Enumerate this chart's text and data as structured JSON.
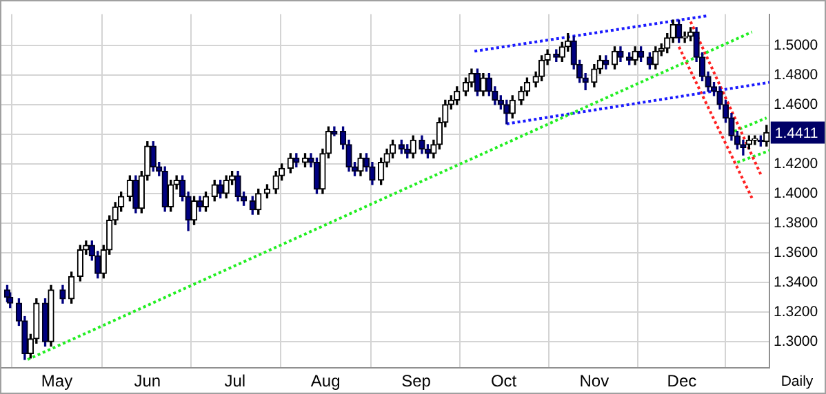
{
  "chart_data": {
    "type": "candlestick",
    "x": [
      "--04-14",
      "--04-15",
      "--04-18",
      "--04-20",
      "--04-22",
      "--04-24",
      "--04-27",
      "--04-29",
      "--05-03",
      "--05-06",
      "--05-09",
      "--05-11",
      "--05-13",
      "--05-15",
      "--05-17",
      "--05-19",
      "--05-21",
      "--05-23",
      "--05-26",
      "--05-28",
      "--05-30",
      "--06-01",
      "--06-03",
      "--06-05",
      "--06-07",
      "--06-09",
      "--06-11",
      "--06-13",
      "--06-15",
      "--06-17",
      "--06-19",
      "--06-21",
      "--06-24",
      "--06-26",
      "--06-28",
      "--06-30",
      "--07-02",
      "--07-04",
      "--07-07",
      "--07-09",
      "--07-12",
      "--07-15",
      "--07-17",
      "--07-20",
      "--07-22",
      "--07-25",
      "--07-27",
      "--07-29",
      "--07-31",
      "--08-02",
      "--08-04",
      "--08-07",
      "--08-09",
      "--08-11",
      "--08-13",
      "--08-15",
      "--08-17",
      "--08-20",
      "--08-22",
      "--08-24",
      "--08-27",
      "--08-29",
      "--08-31",
      "--09-03",
      "--09-05",
      "--09-07",
      "--09-09",
      "--09-11",
      "--09-13",
      "--09-15",
      "--09-18",
      "--09-20",
      "--09-22",
      "--09-24",
      "--09-26",
      "--09-28",
      "--09-30",
      "--10-02",
      "--10-04",
      "--10-07",
      "--10-09",
      "--10-12",
      "--10-14",
      "--10-16",
      "--10-19",
      "--10-21",
      "--10-23",
      "--10-25",
      "--10-27",
      "--10-29",
      "--11-01",
      "--11-03",
      "--11-05",
      "--11-08",
      "--11-10",
      "--11-13",
      "--11-15",
      "--11-17",
      "--11-20",
      "--11-22",
      "--11-24",
      "--11-26",
      "--11-28",
      "--11-30",
      "--12-02",
      "--12-04",
      "--12-06",
      "--12-08",
      "--12-10",
      "--12-12",
      "--12-14",
      "--12-16",
      "--12-18",
      "--12-20",
      "--12-22",
      "--12-24",
      "--12-26",
      "--12-28",
      "--12-30"
    ],
    "ohlc": [
      [
        1.335,
        1.338,
        1.327,
        1.33
      ],
      [
        1.33,
        1.333,
        1.323,
        1.326
      ],
      [
        1.326,
        1.329,
        1.311,
        1.314
      ],
      [
        1.314,
        1.317,
        1.288,
        1.292
      ],
      [
        1.292,
        1.305,
        1.289,
        1.302
      ],
      [
        1.302,
        1.329,
        1.299,
        1.326
      ],
      [
        1.326,
        1.329,
        1.297,
        1.3
      ],
      [
        1.3,
        1.338,
        1.297,
        1.335
      ],
      [
        1.335,
        1.338,
        1.326,
        1.329
      ],
      [
        1.329,
        1.347,
        1.326,
        1.344
      ],
      [
        1.344,
        1.365,
        1.341,
        1.362
      ],
      [
        1.362,
        1.368,
        1.359,
        1.365
      ],
      [
        1.365,
        1.368,
        1.355,
        1.358
      ],
      [
        1.358,
        1.361,
        1.343,
        1.346
      ],
      [
        1.346,
        1.365,
        1.343,
        1.362
      ],
      [
        1.362,
        1.385,
        1.359,
        1.382
      ],
      [
        1.382,
        1.394,
        1.379,
        1.391
      ],
      [
        1.391,
        1.401,
        1.388,
        1.398
      ],
      [
        1.398,
        1.412,
        1.395,
        1.409
      ],
      [
        1.409,
        1.412,
        1.387,
        1.39
      ],
      [
        1.39,
        1.415,
        1.387,
        1.412
      ],
      [
        1.412,
        1.435,
        1.409,
        1.432
      ],
      [
        1.432,
        1.435,
        1.415,
        1.418
      ],
      [
        1.418,
        1.421,
        1.412,
        1.415
      ],
      [
        1.415,
        1.418,
        1.388,
        1.391
      ],
      [
        1.391,
        1.409,
        1.388,
        1.406
      ],
      [
        1.406,
        1.412,
        1.403,
        1.409
      ],
      [
        1.409,
        1.412,
        1.395,
        1.398
      ],
      [
        1.398,
        1.401,
        1.375,
        1.382
      ],
      [
        1.382,
        1.398,
        1.379,
        1.395
      ],
      [
        1.395,
        1.398,
        1.388,
        1.391
      ],
      [
        1.391,
        1.401,
        1.388,
        1.398
      ],
      [
        1.398,
        1.409,
        1.395,
        1.406
      ],
      [
        1.406,
        1.409,
        1.397,
        1.4
      ],
      [
        1.4,
        1.412,
        1.397,
        1.409
      ],
      [
        1.409,
        1.415,
        1.406,
        1.412
      ],
      [
        1.412,
        1.415,
        1.395,
        1.398
      ],
      [
        1.398,
        1.401,
        1.392,
        1.395
      ],
      [
        1.395,
        1.398,
        1.386,
        1.389
      ],
      [
        1.389,
        1.403,
        1.386,
        1.4
      ],
      [
        1.4,
        1.406,
        1.397,
        1.403
      ],
      [
        1.403,
        1.415,
        1.4,
        1.412
      ],
      [
        1.412,
        1.42,
        1.409,
        1.417
      ],
      [
        1.417,
        1.427,
        1.414,
        1.424
      ],
      [
        1.424,
        1.427,
        1.418,
        1.421
      ],
      [
        1.421,
        1.427,
        1.418,
        1.424
      ],
      [
        1.424,
        1.427,
        1.418,
        1.421
      ],
      [
        1.421,
        1.424,
        1.4,
        1.403
      ],
      [
        1.403,
        1.43,
        1.4,
        1.427
      ],
      [
        1.427,
        1.445,
        1.424,
        1.442
      ],
      [
        1.442,
        1.445,
        1.439,
        1.44
      ],
      [
        1.442,
        1.445,
        1.43,
        1.433
      ],
      [
        1.433,
        1.436,
        1.415,
        1.418
      ],
      [
        1.418,
        1.421,
        1.412,
        1.415
      ],
      [
        1.415,
        1.427,
        1.412,
        1.424
      ],
      [
        1.424,
        1.427,
        1.415,
        1.418
      ],
      [
        1.418,
        1.421,
        1.406,
        1.409
      ],
      [
        1.409,
        1.424,
        1.406,
        1.421
      ],
      [
        1.421,
        1.43,
        1.418,
        1.427
      ],
      [
        1.427,
        1.436,
        1.424,
        1.433
      ],
      [
        1.433,
        1.436,
        1.427,
        1.43
      ],
      [
        1.43,
        1.433,
        1.424,
        1.427
      ],
      [
        1.427,
        1.439,
        1.424,
        1.436
      ],
      [
        1.436,
        1.439,
        1.427,
        1.43
      ],
      [
        1.43,
        1.433,
        1.424,
        1.427
      ],
      [
        1.427,
        1.436,
        1.424,
        1.433
      ],
      [
        1.433,
        1.451,
        1.43,
        1.448
      ],
      [
        1.448,
        1.463,
        1.445,
        1.46
      ],
      [
        1.46,
        1.466,
        1.457,
        1.463
      ],
      [
        1.463,
        1.472,
        1.46,
        1.469
      ],
      [
        1.469,
        1.478,
        1.466,
        1.475
      ],
      [
        1.475,
        1.484,
        1.472,
        1.481
      ],
      [
        1.481,
        1.484,
        1.466,
        1.469
      ],
      [
        1.469,
        1.481,
        1.466,
        1.478
      ],
      [
        1.478,
        1.481,
        1.466,
        1.469
      ],
      [
        1.469,
        1.472,
        1.46,
        1.463
      ],
      [
        1.463,
        1.466,
        1.457,
        1.46
      ],
      [
        1.46,
        1.463,
        1.447,
        1.454
      ],
      [
        1.454,
        1.466,
        1.451,
        1.463
      ],
      [
        1.463,
        1.472,
        1.46,
        1.469
      ],
      [
        1.469,
        1.478,
        1.466,
        1.475
      ],
      [
        1.475,
        1.482,
        1.472,
        1.479
      ],
      [
        1.479,
        1.493,
        1.476,
        1.49
      ],
      [
        1.49,
        1.497,
        1.487,
        1.494
      ],
      [
        1.494,
        1.497,
        1.489,
        1.492
      ],
      [
        1.492,
        1.502,
        1.489,
        1.499
      ],
      [
        1.499,
        1.508,
        1.496,
        1.503
      ],
      [
        1.503,
        1.506,
        1.484,
        1.487
      ],
      [
        1.487,
        1.49,
        1.475,
        1.478
      ],
      [
        1.478,
        1.481,
        1.47,
        1.475
      ],
      [
        1.475,
        1.487,
        1.472,
        1.484
      ],
      [
        1.484,
        1.493,
        1.481,
        1.49
      ],
      [
        1.49,
        1.493,
        1.484,
        1.487
      ],
      [
        1.487,
        1.499,
        1.484,
        1.496
      ],
      [
        1.496,
        1.499,
        1.489,
        1.492
      ],
      [
        1.492,
        1.495,
        1.487,
        1.49
      ],
      [
        1.49,
        1.499,
        1.487,
        1.496
      ],
      [
        1.496,
        1.499,
        1.489,
        1.492
      ],
      [
        1.492,
        1.495,
        1.484,
        1.487
      ],
      [
        1.487,
        1.499,
        1.484,
        1.496
      ],
      [
        1.496,
        1.501,
        1.493,
        1.498
      ],
      [
        1.498,
        1.508,
        1.495,
        1.505
      ],
      [
        1.505,
        1.517,
        1.502,
        1.514
      ],
      [
        1.514,
        1.517,
        1.502,
        1.505
      ],
      [
        1.505,
        1.509,
        1.502,
        1.506
      ],
      [
        1.506,
        1.512,
        1.503,
        1.509
      ],
      [
        1.509,
        1.512,
        1.489,
        1.492
      ],
      [
        1.492,
        1.495,
        1.476,
        1.479
      ],
      [
        1.479,
        1.482,
        1.469,
        1.472
      ],
      [
        1.472,
        1.475,
        1.466,
        1.469
      ],
      [
        1.469,
        1.472,
        1.457,
        1.46
      ],
      [
        1.46,
        1.463,
        1.448,
        1.451
      ],
      [
        1.451,
        1.454,
        1.436,
        1.439
      ],
      [
        1.439,
        1.442,
        1.43,
        1.433
      ],
      [
        1.433,
        1.436,
        1.426,
        1.431
      ],
      [
        1.433,
        1.439,
        1.43,
        1.436
      ],
      [
        1.436,
        1.439,
        1.433,
        1.437
      ],
      [
        1.436,
        1.439,
        1.432,
        1.435
      ],
      [
        1.435,
        1.446,
        1.432,
        1.4411
      ]
    ],
    "series": [
      {
        "type": "line",
        "color": "#22ee22",
        "x": [
          "--04-21",
          "--12-25"
        ],
        "values": [
          1.288,
          1.509
        ]
      },
      {
        "type": "line",
        "color": "#1a1aff",
        "x": [
          "--09-21",
          "--12-10"
        ],
        "values": [
          1.496,
          1.52
        ]
      },
      {
        "type": "line",
        "color": "#1a1aff",
        "x": [
          "--10-02",
          "--12-31"
        ],
        "values": [
          1.447,
          1.475
        ]
      },
      {
        "type": "line",
        "color": "#ff2020",
        "x": [
          "--11-30",
          "--12-25"
        ],
        "values": [
          1.499,
          1.397
        ]
      },
      {
        "type": "line",
        "color": "#ff2020",
        "x": [
          "--12-04",
          "--12-28"
        ],
        "values": [
          1.516,
          1.413
        ]
      },
      {
        "type": "line",
        "color": "#22ee22",
        "x": [
          "--12-19",
          "--12-30"
        ],
        "values": [
          1.442,
          1.451
        ]
      },
      {
        "type": "line",
        "color": "#22ee22",
        "x": [
          "--12-20",
          "--12-31"
        ],
        "values": [
          1.421,
          1.429
        ]
      }
    ],
    "line_style": "dotted",
    "xlim": [
      "--04-12",
      "--12-31"
    ],
    "xticks": [
      {
        "value": "--05-01",
        "label": "May"
      },
      {
        "value": "--06-01",
        "label": "Jun"
      },
      {
        "value": "--07-01",
        "label": "Jul"
      },
      {
        "value": "--08-01",
        "label": "Aug"
      },
      {
        "value": "--09-01",
        "label": "Sep"
      },
      {
        "value": "--10-01",
        "label": "Oct"
      },
      {
        "value": "--11-01",
        "label": "Nov"
      },
      {
        "value": "--12-01",
        "label": "Dec"
      }
    ],
    "ylim": [
      1.2824,
      1.521
    ],
    "yticks": [
      {
        "value": 1.3,
        "label": "1.3000"
      },
      {
        "value": 1.32,
        "label": "1.3200"
      },
      {
        "value": 1.34,
        "label": "1.3400"
      },
      {
        "value": 1.36,
        "label": "1.3600"
      },
      {
        "value": 1.38,
        "label": "1.3800"
      },
      {
        "value": 1.4,
        "label": "1.4000"
      },
      {
        "value": 1.42,
        "label": "1.4200"
      },
      {
        "value": 1.44,
        "label": null
      },
      {
        "value": 1.46,
        "label": "1.4600"
      },
      {
        "value": 1.48,
        "label": "1.4800"
      },
      {
        "value": 1.5,
        "label": "1.5000"
      }
    ],
    "grid": true,
    "annotations": [
      {
        "text": "1.4411",
        "x": "--12-30",
        "y": 1.4411
      },
      "Daily"
    ]
  }
}
